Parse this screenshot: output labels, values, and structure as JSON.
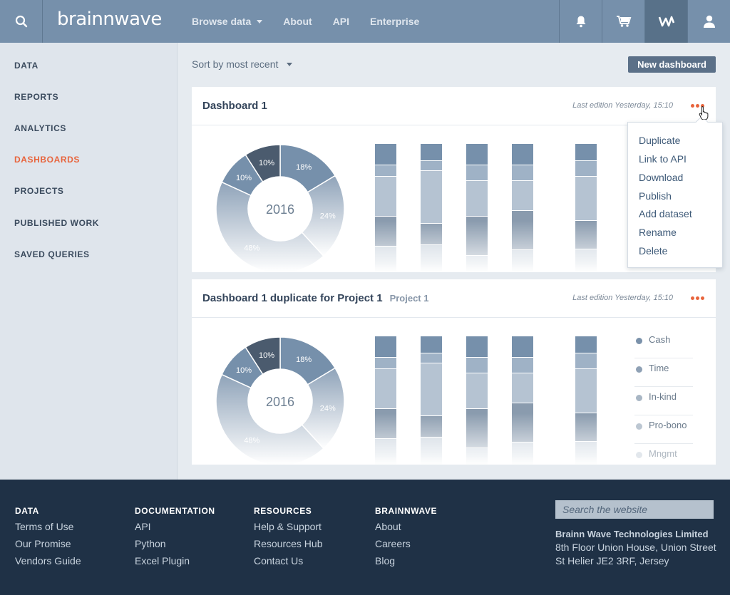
{
  "header": {
    "logo": "brainnwave",
    "nav": [
      "Browse data",
      "About",
      "API",
      "Enterprise"
    ],
    "icons": [
      "search-icon",
      "bell-icon",
      "cart-icon",
      "brand-icon",
      "user-icon"
    ]
  },
  "sidebar": {
    "items": [
      {
        "label": "DATA"
      },
      {
        "label": "REPORTS"
      },
      {
        "label": "ANALYTICS"
      },
      {
        "label": "DASHBOARDS",
        "active": true
      },
      {
        "label": "PROJECTS"
      },
      {
        "label": "PUBLISHED WORK"
      },
      {
        "label": "SAVED QUERIES"
      }
    ]
  },
  "toolbar": {
    "sort_label": "Sort by most recent",
    "new_button": "New dashboard"
  },
  "dashboards": [
    {
      "title": "Dashboard 1",
      "project": "",
      "edited": "Last edition Yesterday, 15:10"
    },
    {
      "title": "Dashboard 1 duplicate for Project 1",
      "project": "Project 1",
      "edited": "Last edition Yesterday, 15:10"
    }
  ],
  "menu": {
    "items": [
      "Duplicate",
      "Link to API",
      "Download",
      "Publish",
      "Add dataset",
      "Rename",
      "Delete"
    ]
  },
  "chart_data": {
    "type": "pie",
    "center_label": "2016",
    "slices": [
      {
        "label": "18%",
        "value": 18
      },
      {
        "label": "24%",
        "value": 24
      },
      {
        "label": "48%",
        "value": 48
      },
      {
        "label": "10%",
        "value": 10
      },
      {
        "label": "10%",
        "value": 10
      }
    ],
    "legend": [
      "Cash",
      "Time",
      "In-kind",
      "Pro-bono",
      "Mngmt"
    ],
    "legend_colors": [
      "#7a91aa",
      "#8fa1b5",
      "#a8b6c4",
      "#bcc7d2",
      "#ccd5de"
    ]
  },
  "footer": {
    "columns": [
      {
        "heading": "DATA",
        "links": [
          "Terms of Use",
          "Our Promise",
          "Vendors Guide"
        ]
      },
      {
        "heading": "DOCUMENTATION",
        "links": [
          "API",
          "Python",
          "Excel Plugin"
        ]
      },
      {
        "heading": "RESOURCES",
        "links": [
          "Help & Support",
          "Resources Hub",
          "Contact Us"
        ]
      },
      {
        "heading": "BRAINNWAVE",
        "links": [
          "About",
          "Careers",
          "Blog"
        ]
      }
    ],
    "search_placeholder": "Search the website",
    "company": "Brainn Wave Technologies Limited",
    "address": [
      "8th Floor Union House, Union Street",
      "St Helier JE2 3RF, Jersey"
    ]
  }
}
